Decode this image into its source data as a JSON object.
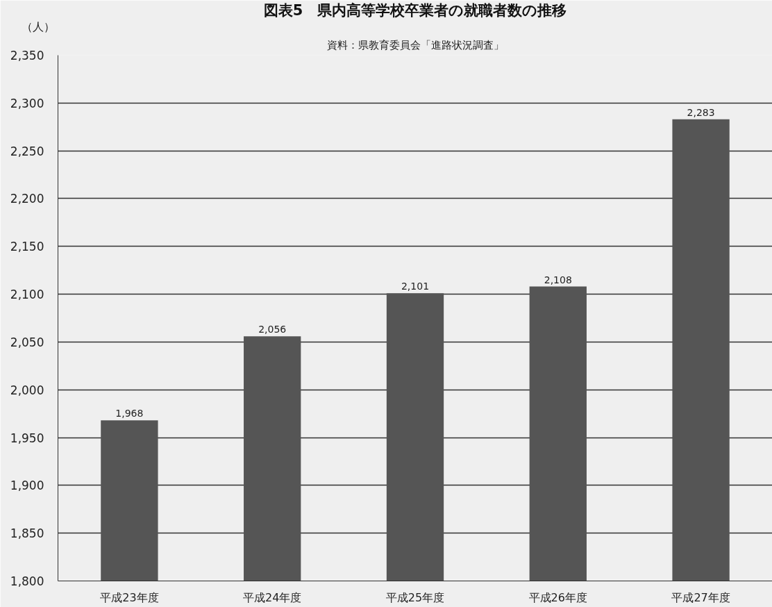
{
  "chart_data": {
    "type": "bar",
    "title": "図表5　県内高等学校卒業者の就職者数の推移",
    "subtitle": "資料：県教育委員会「進路状況調査」",
    "ylabel": "（人）",
    "categories": [
      "平成23年度",
      "平成24年度",
      "平成25年度",
      "平成26年度",
      "平成27年度"
    ],
    "values": [
      1968,
      2056,
      2101,
      2108,
      2283
    ],
    "value_labels": [
      "1,968",
      "2,056",
      "2,101",
      "2,108",
      "2,283"
    ],
    "color": "#555555",
    "ylim": [
      1800,
      2350
    ],
    "yticks": [
      {
        "value": 1800,
        "label": "1,800"
      },
      {
        "value": 1850,
        "label": "1,850"
      },
      {
        "value": 1900,
        "label": "1,900"
      },
      {
        "value": 1950,
        "label": "1,950"
      },
      {
        "value": 2000,
        "label": "2,000"
      },
      {
        "value": 2050,
        "label": "2,050"
      },
      {
        "value": 2100,
        "label": "2,100"
      },
      {
        "value": 2150,
        "label": "2,150"
      },
      {
        "value": 2200,
        "label": "2,200"
      },
      {
        "value": 2250,
        "label": "2,250"
      },
      {
        "value": 2300,
        "label": "2,300"
      },
      {
        "value": 2350,
        "label": "2,350"
      }
    ],
    "grid": "y"
  }
}
